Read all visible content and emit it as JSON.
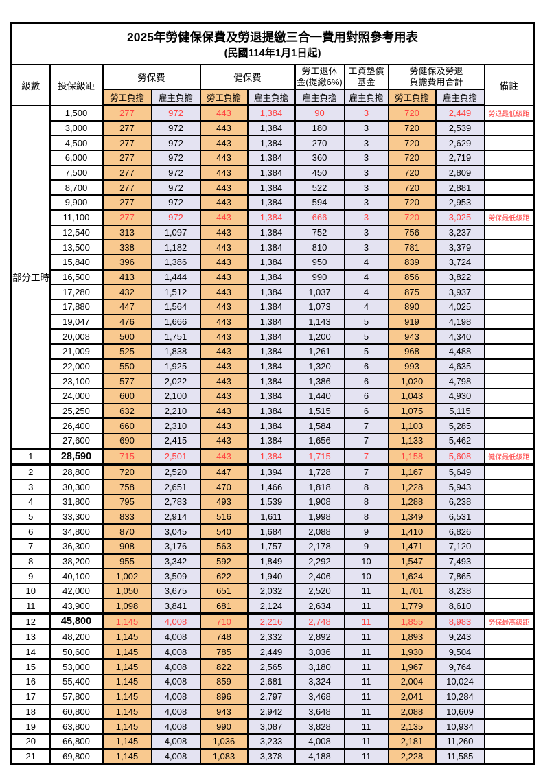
{
  "title": "2025年勞健保保費及勞退提繳三合一費用對照參考用表",
  "subtitle": "(民國114年1月1日起)",
  "colors": {
    "employee_bg": "#F9C98F",
    "employer_bg": "#E4E3F2",
    "highlight_red": "#FF4040",
    "grid_black": "#000000"
  },
  "header": {
    "level": "級數",
    "bracket": "投保級距",
    "labor_insurance": "勞保費",
    "health_insurance": "健保費",
    "pension_line1": "勞工退休",
    "pension_line2": "金(提繳6%)",
    "wage_fund_line1": "工資墊償",
    "wage_fund_line2": "基金",
    "total_line1": "勞健保及勞退",
    "total_line2": "負擔費用合計",
    "note": "備註",
    "employee_share": "勞工負擔",
    "employer_share": "雇主負擔"
  },
  "table": {
    "part_time_label": "部分工時",
    "part_time_span": 23,
    "value_classes": [
      "emp",
      "er",
      "emp",
      "er",
      "er",
      "er",
      "emp",
      "er"
    ],
    "rows": [
      {
        "level": null,
        "bracket": "1,500",
        "values": [
          "277",
          "972",
          "443",
          "1,384",
          "90",
          "3",
          "720",
          "2,449"
        ],
        "note": "勞退最低級距",
        "red": true,
        "bold": false,
        "thick": false
      },
      {
        "level": null,
        "bracket": "3,000",
        "values": [
          "277",
          "972",
          "443",
          "1,384",
          "180",
          "3",
          "720",
          "2,539"
        ],
        "note": "",
        "red": false,
        "bold": false,
        "thick": false
      },
      {
        "level": null,
        "bracket": "4,500",
        "values": [
          "277",
          "972",
          "443",
          "1,384",
          "270",
          "3",
          "720",
          "2,629"
        ],
        "note": "",
        "red": false,
        "bold": false,
        "thick": false
      },
      {
        "level": null,
        "bracket": "6,000",
        "values": [
          "277",
          "972",
          "443",
          "1,384",
          "360",
          "3",
          "720",
          "2,719"
        ],
        "note": "",
        "red": false,
        "bold": false,
        "thick": false
      },
      {
        "level": null,
        "bracket": "7,500",
        "values": [
          "277",
          "972",
          "443",
          "1,384",
          "450",
          "3",
          "720",
          "2,809"
        ],
        "note": "",
        "red": false,
        "bold": false,
        "thick": false
      },
      {
        "level": null,
        "bracket": "8,700",
        "values": [
          "277",
          "972",
          "443",
          "1,384",
          "522",
          "3",
          "720",
          "2,881"
        ],
        "note": "",
        "red": false,
        "bold": false,
        "thick": false
      },
      {
        "level": null,
        "bracket": "9,900",
        "values": [
          "277",
          "972",
          "443",
          "1,384",
          "594",
          "3",
          "720",
          "2,953"
        ],
        "note": "",
        "red": false,
        "bold": false,
        "thick": false
      },
      {
        "level": null,
        "bracket": "11,100",
        "values": [
          "277",
          "972",
          "443",
          "1,384",
          "666",
          "3",
          "720",
          "3,025"
        ],
        "note": "勞保最低級距",
        "red": true,
        "bold": false,
        "thick": false
      },
      {
        "level": null,
        "bracket": "12,540",
        "values": [
          "313",
          "1,097",
          "443",
          "1,384",
          "752",
          "3",
          "756",
          "3,237"
        ],
        "note": "",
        "red": false,
        "bold": false,
        "thick": false
      },
      {
        "level": null,
        "bracket": "13,500",
        "values": [
          "338",
          "1,182",
          "443",
          "1,384",
          "810",
          "3",
          "781",
          "3,379"
        ],
        "note": "",
        "red": false,
        "bold": false,
        "thick": false
      },
      {
        "level": null,
        "bracket": "15,840",
        "values": [
          "396",
          "1,386",
          "443",
          "1,384",
          "950",
          "4",
          "839",
          "3,724"
        ],
        "note": "",
        "red": false,
        "bold": false,
        "thick": false
      },
      {
        "level": null,
        "bracket": "16,500",
        "values": [
          "413",
          "1,444",
          "443",
          "1,384",
          "990",
          "4",
          "856",
          "3,822"
        ],
        "note": "",
        "red": false,
        "bold": false,
        "thick": false
      },
      {
        "level": null,
        "bracket": "17,280",
        "values": [
          "432",
          "1,512",
          "443",
          "1,384",
          "1,037",
          "4",
          "875",
          "3,937"
        ],
        "note": "",
        "red": false,
        "bold": false,
        "thick": false
      },
      {
        "level": null,
        "bracket": "17,880",
        "values": [
          "447",
          "1,564",
          "443",
          "1,384",
          "1,073",
          "4",
          "890",
          "4,025"
        ],
        "note": "",
        "red": false,
        "bold": false,
        "thick": false
      },
      {
        "level": null,
        "bracket": "19,047",
        "values": [
          "476",
          "1,666",
          "443",
          "1,384",
          "1,143",
          "5",
          "919",
          "4,198"
        ],
        "note": "",
        "red": false,
        "bold": false,
        "thick": false
      },
      {
        "level": null,
        "bracket": "20,008",
        "values": [
          "500",
          "1,751",
          "443",
          "1,384",
          "1,200",
          "5",
          "943",
          "4,340"
        ],
        "note": "",
        "red": false,
        "bold": false,
        "thick": false
      },
      {
        "level": null,
        "bracket": "21,009",
        "values": [
          "525",
          "1,838",
          "443",
          "1,384",
          "1,261",
          "5",
          "968",
          "4,488"
        ],
        "note": "",
        "red": false,
        "bold": false,
        "thick": false
      },
      {
        "level": null,
        "bracket": "22,000",
        "values": [
          "550",
          "1,925",
          "443",
          "1,384",
          "1,320",
          "6",
          "993",
          "4,635"
        ],
        "note": "",
        "red": false,
        "bold": false,
        "thick": false
      },
      {
        "level": null,
        "bracket": "23,100",
        "values": [
          "577",
          "2,022",
          "443",
          "1,384",
          "1,386",
          "6",
          "1,020",
          "4,798"
        ],
        "note": "",
        "red": false,
        "bold": false,
        "thick": false
      },
      {
        "level": null,
        "bracket": "24,000",
        "values": [
          "600",
          "2,100",
          "443",
          "1,384",
          "1,440",
          "6",
          "1,043",
          "4,930"
        ],
        "note": "",
        "red": false,
        "bold": false,
        "thick": false
      },
      {
        "level": null,
        "bracket": "25,250",
        "values": [
          "632",
          "2,210",
          "443",
          "1,384",
          "1,515",
          "6",
          "1,075",
          "5,115"
        ],
        "note": "",
        "red": false,
        "bold": false,
        "thick": false
      },
      {
        "level": null,
        "bracket": "26,400",
        "values": [
          "660",
          "2,310",
          "443",
          "1,384",
          "1,584",
          "7",
          "1,103",
          "5,285"
        ],
        "note": "",
        "red": false,
        "bold": false,
        "thick": false
      },
      {
        "level": null,
        "bracket": "27,600",
        "values": [
          "690",
          "2,415",
          "443",
          "1,384",
          "1,656",
          "7",
          "1,133",
          "5,462"
        ],
        "note": "",
        "red": false,
        "bold": false,
        "thick": false
      },
      {
        "level": "1",
        "bracket": "28,590",
        "values": [
          "715",
          "2,501",
          "443",
          "1,384",
          "1,715",
          "7",
          "1,158",
          "5,608"
        ],
        "note": "健保最低級距",
        "red": true,
        "bold": true,
        "thick": true
      },
      {
        "level": "2",
        "bracket": "28,800",
        "values": [
          "720",
          "2,520",
          "447",
          "1,394",
          "1,728",
          "7",
          "1,167",
          "5,649"
        ],
        "note": "",
        "red": false,
        "bold": false,
        "thick": false
      },
      {
        "level": "3",
        "bracket": "30,300",
        "values": [
          "758",
          "2,651",
          "470",
          "1,466",
          "1,818",
          "8",
          "1,228",
          "5,943"
        ],
        "note": "",
        "red": false,
        "bold": false,
        "thick": false
      },
      {
        "level": "4",
        "bracket": "31,800",
        "values": [
          "795",
          "2,783",
          "493",
          "1,539",
          "1,908",
          "8",
          "1,288",
          "6,238"
        ],
        "note": "",
        "red": false,
        "bold": false,
        "thick": false
      },
      {
        "level": "5",
        "bracket": "33,300",
        "values": [
          "833",
          "2,914",
          "516",
          "1,611",
          "1,998",
          "8",
          "1,349",
          "6,531"
        ],
        "note": "",
        "red": false,
        "bold": false,
        "thick": false
      },
      {
        "level": "6",
        "bracket": "34,800",
        "values": [
          "870",
          "3,045",
          "540",
          "1,684",
          "2,088",
          "9",
          "1,410",
          "6,826"
        ],
        "note": "",
        "red": false,
        "bold": false,
        "thick": false
      },
      {
        "level": "7",
        "bracket": "36,300",
        "values": [
          "908",
          "3,176",
          "563",
          "1,757",
          "2,178",
          "9",
          "1,471",
          "7,120"
        ],
        "note": "",
        "red": false,
        "bold": false,
        "thick": false
      },
      {
        "level": "8",
        "bracket": "38,200",
        "values": [
          "955",
          "3,342",
          "592",
          "1,849",
          "2,292",
          "10",
          "1,547",
          "7,493"
        ],
        "note": "",
        "red": false,
        "bold": false,
        "thick": false
      },
      {
        "level": "9",
        "bracket": "40,100",
        "values": [
          "1,002",
          "3,509",
          "622",
          "1,940",
          "2,406",
          "10",
          "1,624",
          "7,865"
        ],
        "note": "",
        "red": false,
        "bold": false,
        "thick": false
      },
      {
        "level": "10",
        "bracket": "42,000",
        "values": [
          "1,050",
          "3,675",
          "651",
          "2,032",
          "2,520",
          "11",
          "1,701",
          "8,238"
        ],
        "note": "",
        "red": false,
        "bold": false,
        "thick": false
      },
      {
        "level": "11",
        "bracket": "43,900",
        "values": [
          "1,098",
          "3,841",
          "681",
          "2,124",
          "2,634",
          "11",
          "1,779",
          "8,610"
        ],
        "note": "",
        "red": false,
        "bold": false,
        "thick": false
      },
      {
        "level": "12",
        "bracket": "45,800",
        "values": [
          "1,145",
          "4,008",
          "710",
          "2,216",
          "2,748",
          "11",
          "1,855",
          "8,983"
        ],
        "note": "勞保最高級距",
        "red": true,
        "bold": true,
        "thick": true
      },
      {
        "level": "13",
        "bracket": "48,200",
        "values": [
          "1,145",
          "4,008",
          "748",
          "2,332",
          "2,892",
          "11",
          "1,893",
          "9,243"
        ],
        "note": "",
        "red": false,
        "bold": false,
        "thick": false
      },
      {
        "level": "14",
        "bracket": "50,600",
        "values": [
          "1,145",
          "4,008",
          "785",
          "2,449",
          "3,036",
          "11",
          "1,930",
          "9,504"
        ],
        "note": "",
        "red": false,
        "bold": false,
        "thick": false
      },
      {
        "level": "15",
        "bracket": "53,000",
        "values": [
          "1,145",
          "4,008",
          "822",
          "2,565",
          "3,180",
          "11",
          "1,967",
          "9,764"
        ],
        "note": "",
        "red": false,
        "bold": false,
        "thick": false
      },
      {
        "level": "16",
        "bracket": "55,400",
        "values": [
          "1,145",
          "4,008",
          "859",
          "2,681",
          "3,324",
          "11",
          "2,004",
          "10,024"
        ],
        "note": "",
        "red": false,
        "bold": false,
        "thick": false
      },
      {
        "level": "17",
        "bracket": "57,800",
        "values": [
          "1,145",
          "4,008",
          "896",
          "2,797",
          "3,468",
          "11",
          "2,041",
          "10,284"
        ],
        "note": "",
        "red": false,
        "bold": false,
        "thick": false
      },
      {
        "level": "18",
        "bracket": "60,800",
        "values": [
          "1,145",
          "4,008",
          "943",
          "2,942",
          "3,648",
          "11",
          "2,088",
          "10,609"
        ],
        "note": "",
        "red": false,
        "bold": false,
        "thick": false
      },
      {
        "level": "19",
        "bracket": "63,800",
        "values": [
          "1,145",
          "4,008",
          "990",
          "3,087",
          "3,828",
          "11",
          "2,135",
          "10,934"
        ],
        "note": "",
        "red": false,
        "bold": false,
        "thick": false
      },
      {
        "level": "20",
        "bracket": "66,800",
        "values": [
          "1,145",
          "4,008",
          "1,036",
          "3,233",
          "4,008",
          "11",
          "2,181",
          "11,260"
        ],
        "note": "",
        "red": false,
        "bold": false,
        "thick": false
      },
      {
        "level": "21",
        "bracket": "69,800",
        "values": [
          "1,145",
          "4,008",
          "1,083",
          "3,378",
          "4,188",
          "11",
          "2,228",
          "11,585"
        ],
        "note": "",
        "red": false,
        "bold": false,
        "thick": false
      }
    ]
  }
}
